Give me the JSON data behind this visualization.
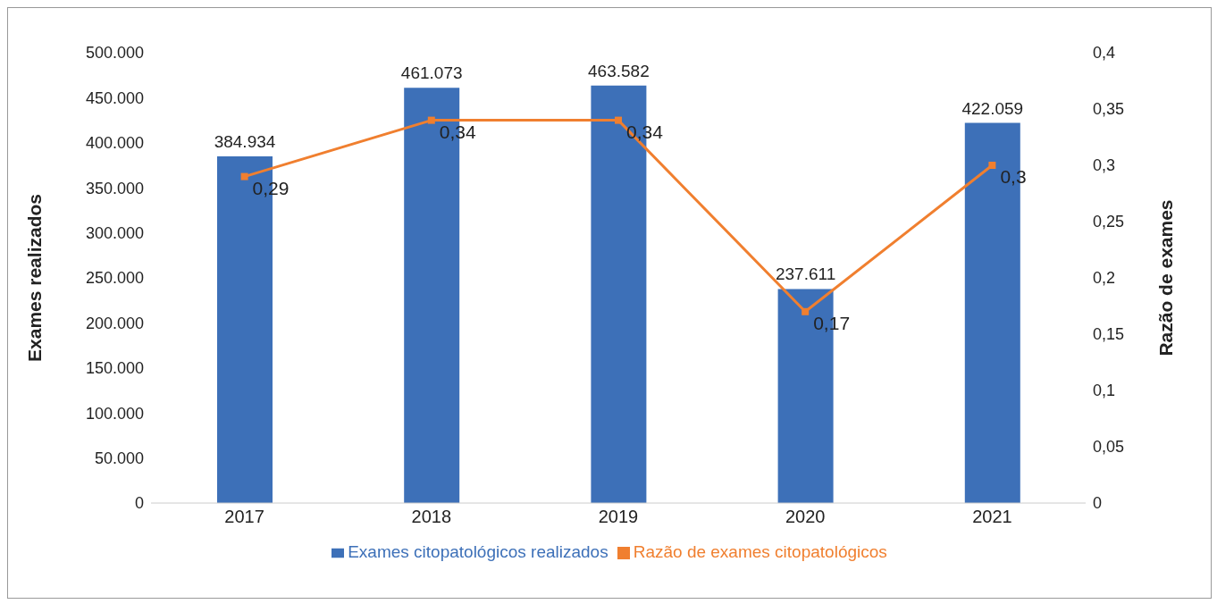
{
  "chart_data": {
    "type": "bar",
    "ylabel": "Exames realizados",
    "y2label": "Razão de exames",
    "categories": [
      "2017",
      "2018",
      "2019",
      "2020",
      "2021"
    ],
    "series": [
      {
        "name": "Exames citopatológicos realizados",
        "color": "#3d70b8",
        "values": [
          384934,
          461073,
          463582,
          237611,
          422059
        ],
        "value_labels": [
          "384.934",
          "461.073",
          "463.582",
          "237.611",
          "422.059"
        ]
      },
      {
        "name": "Razão de exames citopatológicos",
        "type": "line",
        "axis": "y2",
        "color": "#f07f2f",
        "marker": "square",
        "line_style": "solid",
        "values": [
          0.29,
          0.34,
          0.34,
          0.17,
          0.3
        ],
        "value_labels": [
          "0,29",
          "0,34",
          "0,34",
          "0,17",
          "0,3"
        ]
      }
    ],
    "ylim": [
      0,
      500000
    ],
    "yticks": [
      {
        "value": 0,
        "label": "0"
      },
      {
        "value": 50000,
        "label": "50.000"
      },
      {
        "value": 100000,
        "label": "100.000"
      },
      {
        "value": 150000,
        "label": "150.000"
      },
      {
        "value": 200000,
        "label": "200.000"
      },
      {
        "value": 250000,
        "label": "250.000"
      },
      {
        "value": 300000,
        "label": "300.000"
      },
      {
        "value": 350000,
        "label": "350.000"
      },
      {
        "value": 400000,
        "label": "400.000"
      },
      {
        "value": 450000,
        "label": "450.000"
      },
      {
        "value": 500000,
        "label": "500.000"
      }
    ],
    "y2lim": [
      0,
      0.4
    ],
    "y2ticks": [
      {
        "value": 0,
        "label": "0"
      },
      {
        "value": 0.05,
        "label": "0,05"
      },
      {
        "value": 0.1,
        "label": "0,1"
      },
      {
        "value": 0.15,
        "label": "0,15"
      },
      {
        "value": 0.2,
        "label": "0,2"
      },
      {
        "value": 0.25,
        "label": "0,25"
      },
      {
        "value": 0.3,
        "label": "0,3"
      },
      {
        "value": 0.35,
        "label": "0,35"
      },
      {
        "value": 0.4,
        "label": "0,4"
      }
    ],
    "grid": false,
    "legend": "bottom"
  }
}
